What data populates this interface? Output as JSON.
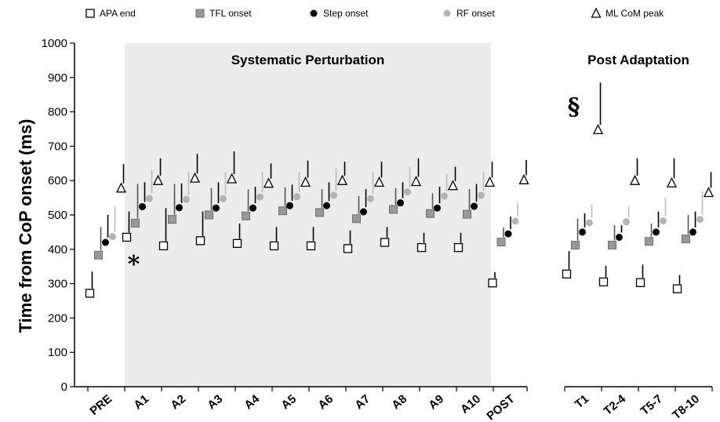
{
  "chart_data": {
    "type": "scatter",
    "ylabel": "Time from CoP onset (ms)",
    "xlabel": "",
    "ylim": [
      0,
      1000
    ],
    "yticks": [
      0,
      100,
      200,
      300,
      400,
      500,
      600,
      700,
      800,
      900,
      1000
    ],
    "grid": false,
    "legend_position": "top",
    "panels": [
      {
        "title": "Systematic Perturbation",
        "shaded": true
      },
      {
        "title": "Post Adaptation",
        "shaded": false
      }
    ],
    "categories": [
      "PRE",
      "A1",
      "A2",
      "A3",
      "A4",
      "A5",
      "A6",
      "A7",
      "A8",
      "A9",
      "A10",
      "POST",
      "T1",
      "T2-4",
      "T5-7",
      "T8-10"
    ],
    "series": [
      {
        "name": "APA end",
        "color": "#ffffff",
        "marker": "open-square",
        "values": [
          272,
          435,
          410,
          425,
          417,
          410,
          410,
          402,
          420,
          405,
          405,
          302,
          328,
          305,
          303,
          285
        ],
        "error_upper": [
          335,
          510,
          520,
          510,
          475,
          465,
          465,
          455,
          465,
          448,
          448,
          333,
          395,
          352,
          355,
          325
        ]
      },
      {
        "name": "TFL onset",
        "color": "#999999",
        "marker": "filled-square",
        "values": [
          383,
          476,
          487,
          500,
          497,
          512,
          507,
          489,
          516,
          504,
          502,
          421,
          412,
          412,
          423,
          430
        ],
        "error_upper": [
          465,
          590,
          590,
          578,
          575,
          580,
          575,
          555,
          578,
          563,
          575,
          463,
          490,
          470,
          475,
          500
        ]
      },
      {
        "name": "Step onset",
        "color": "#000000",
        "marker": "filled-circle",
        "values": [
          420,
          524,
          521,
          520,
          520,
          527,
          527,
          509,
          535,
          520,
          525,
          445,
          450,
          435,
          450,
          450
        ],
        "error_upper": [
          500,
          595,
          592,
          595,
          582,
          588,
          595,
          575,
          595,
          582,
          590,
          495,
          505,
          470,
          510,
          510
        ]
      },
      {
        "name": "RF onset",
        "color": "#b3b3b3",
        "marker": "filled-circle",
        "values": [
          437,
          548,
          545,
          547,
          552,
          553,
          557,
          547,
          567,
          555,
          557,
          482,
          477,
          480,
          483,
          487
        ],
        "error_upper": [
          525,
          630,
          625,
          625,
          625,
          625,
          635,
          625,
          640,
          620,
          625,
          535,
          530,
          525,
          550,
          570
        ]
      },
      {
        "name": "ML CoM peak",
        "color": "#ffffff",
        "marker": "open-triangle",
        "values": [
          578,
          600,
          607,
          605,
          592,
          595,
          600,
          595,
          597,
          585,
          595,
          602,
          748,
          600,
          593,
          565
        ],
        "error_upper": [
          648,
          665,
          678,
          685,
          650,
          658,
          655,
          655,
          665,
          640,
          655,
          660,
          885,
          665,
          665,
          625
        ]
      }
    ],
    "annotations": [
      {
        "text": "*",
        "category": "A1",
        "y": 370
      },
      {
        "text": "§",
        "category": "T1",
        "y": 820
      }
    ]
  }
}
